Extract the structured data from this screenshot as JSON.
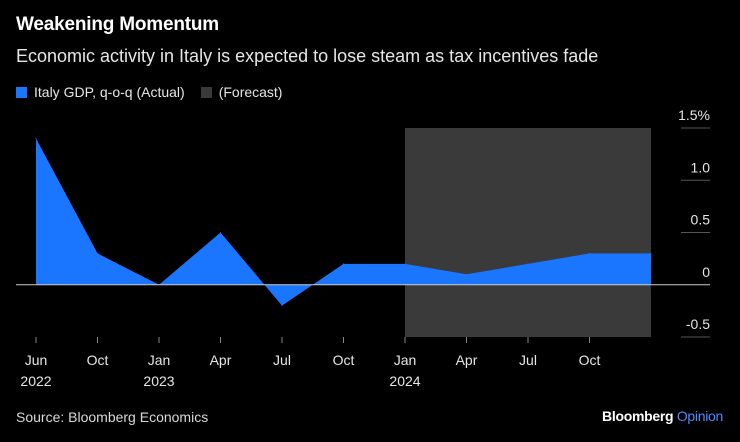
{
  "header": {
    "title": "Weakening Momentum",
    "subtitle": "Economic activity in Italy is expected to lose steam as tax incentives fade"
  },
  "legend": {
    "items": [
      {
        "label": "Italy GDP, q-o-q (Actual)",
        "color": "#1a75ff"
      },
      {
        "label": "(Forecast)",
        "color": "#3a3a3a"
      }
    ]
  },
  "footer": {
    "source": "Source: Bloomberg Economics",
    "brand_main": "Bloomberg",
    "brand_sub": "Opinion"
  },
  "chart_data": {
    "type": "area",
    "x": [
      0,
      1,
      2,
      3,
      4,
      5,
      6,
      7,
      8,
      9,
      10
    ],
    "values": [
      1.4,
      0.3,
      0.0,
      0.5,
      -0.2,
      0.2,
      0.2,
      0.1,
      0.2,
      0.3,
      0.3
    ],
    "series_name": "Italy GDP, q-o-q (Actual)",
    "forecast_range": [
      6,
      10
    ],
    "forecast_label": "(Forecast)",
    "ylim": [
      -0.5,
      1.5
    ],
    "yticks": [
      {
        "value": 1.5,
        "label": "1.5%"
      },
      {
        "value": 1.0,
        "label": "1.0"
      },
      {
        "value": 0.5,
        "label": "0.5"
      },
      {
        "value": 0.0,
        "label": "0"
      },
      {
        "value": -0.5,
        "label": "-0.5"
      }
    ],
    "xticks": [
      {
        "x": 0,
        "label": "Jun",
        "year": "2022"
      },
      {
        "x": 1,
        "label": "Oct",
        "year": ""
      },
      {
        "x": 2,
        "label": "Jan",
        "year": "2023"
      },
      {
        "x": 3,
        "label": "Apr",
        "year": ""
      },
      {
        "x": 4,
        "label": "Jul",
        "year": ""
      },
      {
        "x": 5,
        "label": "Oct",
        "year": ""
      },
      {
        "x": 6,
        "label": "Jan",
        "year": "2024"
      },
      {
        "x": 7,
        "label": "Apr",
        "year": ""
      },
      {
        "x": 8,
        "label": "Jul",
        "year": ""
      },
      {
        "x": 9,
        "label": "Oct",
        "year": ""
      }
    ],
    "colors": {
      "area": "#1a75ff",
      "forecast": "#3a3a3a",
      "zero_line": "#cccccc",
      "grid": "#555555",
      "text": "#e6e6e6"
    }
  }
}
